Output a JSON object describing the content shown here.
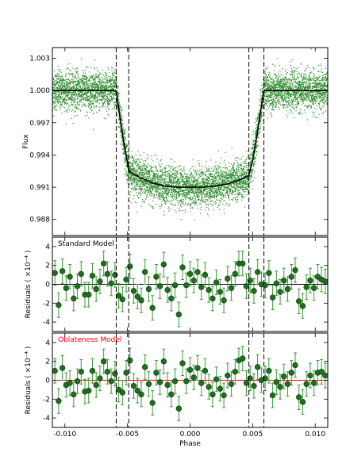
{
  "chart_data": [
    {
      "type": "scatter",
      "panel": "flux",
      "ylabel": "Flux",
      "xlim": [
        -0.011,
        0.011
      ],
      "ylim": [
        0.9865,
        1.004
      ],
      "yticks": [
        1.003,
        1.0,
        0.997,
        0.994,
        0.991,
        0.988
      ],
      "ytick_labels": [
        "1.003",
        "1.000",
        "0.997",
        "0.994",
        "0.991",
        "0.988"
      ],
      "colors": {
        "data": "#2e8b2e",
        "model": "#000000"
      },
      "transit_model": {
        "baseline": 1.0,
        "contacts": [
          -0.0059,
          -0.0049,
          0.0047,
          0.0059
        ],
        "min_flux": 0.991,
        "curve_x": [
          -0.011,
          -0.0059,
          -0.0056,
          -0.0053,
          -0.005,
          -0.0049,
          -0.004,
          -0.003,
          -0.002,
          -0.001,
          0.0,
          0.001,
          0.002,
          0.003,
          0.004,
          0.0047,
          0.005,
          0.0053,
          0.0056,
          0.0059,
          0.011
        ],
        "curve_y": [
          1.0,
          1.0,
          0.9975,
          0.9952,
          0.9933,
          0.9925,
          0.9919,
          0.9914,
          0.9911,
          0.991,
          0.991,
          0.991,
          0.9911,
          0.9913,
          0.9917,
          0.9921,
          0.9935,
          0.9955,
          0.9978,
          1.0,
          1.0
        ]
      },
      "noise_sigma": 0.0009,
      "dashed_lines_x": [
        -0.0059,
        -0.0049,
        0.0047,
        0.0059
      ]
    },
    {
      "type": "scatter",
      "panel": "standard_residuals",
      "annotation": "Standard Model",
      "annotation_color": "#000000",
      "ylabel": "Residuals ( ×10⁻⁴ )",
      "ylim": [
        -5,
        5
      ],
      "yticks": [
        4,
        2,
        0,
        -2,
        -4
      ],
      "ytick_labels": [
        "4",
        "2",
        "0",
        "-2",
        "-4"
      ],
      "zero_line_color": "#000000",
      "error_bar": 1.3,
      "x": [
        -0.0108,
        -0.0105,
        -0.0102,
        -0.0099,
        -0.0096,
        -0.0093,
        -0.009,
        -0.0087,
        -0.0084,
        -0.0081,
        -0.0078,
        -0.0075,
        -0.0072,
        -0.0069,
        -0.0066,
        -0.0063,
        -0.006,
        -0.0057,
        -0.0054,
        -0.0051,
        -0.0048,
        -0.0045,
        -0.0042,
        -0.0039,
        -0.0036,
        -0.0033,
        -0.003,
        -0.0027,
        -0.0024,
        -0.0021,
        -0.0018,
        -0.0015,
        -0.0012,
        -0.0009,
        -0.0006,
        -0.0003,
        0.0,
        0.0003,
        0.0006,
        0.0009,
        0.0012,
        0.0015,
        0.0018,
        0.0021,
        0.0024,
        0.0027,
        0.003,
        0.0033,
        0.0036,
        0.0039,
        0.0042,
        0.0045,
        0.0048,
        0.0051,
        0.0054,
        0.0057,
        0.006,
        0.0063,
        0.0066,
        0.0069,
        0.0072,
        0.0075,
        0.0078,
        0.0081,
        0.0084,
        0.0087,
        0.009,
        0.0093,
        0.0096,
        0.0099,
        0.0102,
        0.0105,
        0.0108
      ],
      "y": [
        1.2,
        -2.2,
        1.4,
        -0.4,
        0.8,
        -1.5,
        -0.2,
        1.1,
        -1.1,
        -1.1,
        0.9,
        -0.5,
        0.3,
        2.2,
        1.1,
        0.1,
        1.0,
        -1.2,
        -1.6,
        0.5,
        1.9,
        -0.7,
        -1.3,
        -1.7,
        1.3,
        -0.5,
        -2.5,
        0.8,
        -0.2,
        2.1,
        -0.6,
        -1.5,
        -0.1,
        -3.2,
        1.8,
        -0.1,
        1.1,
        0.4,
        1.3,
        -0.3,
        1.0,
        -0.6,
        -1.5,
        0.2,
        -0.8,
        -1.7,
        0.6,
        -0.4,
        1.1,
        2.2,
        2.2,
        -0.2,
        0.4,
        -0.7,
        1.3,
        0.0,
        -0.1,
        1.2,
        -1.4,
        0.1,
        -0.8,
        0.4,
        -0.5,
        0.8,
        1.5,
        -1.8,
        -2.3,
        -0.3,
        0.4,
        -0.4,
        0.8,
        0.5,
        0.3
      ]
    },
    {
      "type": "scatter",
      "panel": "oblateness_residuals",
      "annotation": "Oblateness Model",
      "annotation_color": "#ff0000",
      "ylabel": "Residuals ( ×10⁻⁴ )",
      "xlabel": "Phase",
      "ylim": [
        -5,
        5
      ],
      "yticks": [
        4,
        2,
        0,
        -2,
        -4
      ],
      "ytick_labels": [
        "4",
        "2",
        "0",
        "-2",
        "-4"
      ],
      "xticks": [
        -0.01,
        -0.005,
        0.0,
        0.005,
        0.01
      ],
      "xtick_labels": [
        "-0.010",
        "-0.005",
        "0.000",
        "0.005",
        "0.010"
      ],
      "zero_line_color": "#ff0000",
      "error_bar": 1.3,
      "x": [
        -0.0108,
        -0.0105,
        -0.0102,
        -0.0099,
        -0.0096,
        -0.0093,
        -0.009,
        -0.0087,
        -0.0084,
        -0.0081,
        -0.0078,
        -0.0075,
        -0.0072,
        -0.0069,
        -0.0066,
        -0.0063,
        -0.006,
        -0.0057,
        -0.0054,
        -0.0051,
        -0.0048,
        -0.0045,
        -0.0042,
        -0.0039,
        -0.0036,
        -0.0033,
        -0.003,
        -0.0027,
        -0.0024,
        -0.0021,
        -0.0018,
        -0.0015,
        -0.0012,
        -0.0009,
        -0.0006,
        -0.0003,
        0.0,
        0.0003,
        0.0006,
        0.0009,
        0.0012,
        0.0015,
        0.0018,
        0.0021,
        0.0024,
        0.0027,
        0.003,
        0.0033,
        0.0036,
        0.0039,
        0.0042,
        0.0045,
        0.0048,
        0.0051,
        0.0054,
        0.0057,
        0.006,
        0.0063,
        0.0066,
        0.0069,
        0.0072,
        0.0075,
        0.0078,
        0.0081,
        0.0084,
        0.0087,
        0.009,
        0.0093,
        0.0096,
        0.0099,
        0.0102,
        0.0105,
        0.0108
      ],
      "y": [
        1.0,
        -2.2,
        1.3,
        -0.5,
        -0.3,
        -1.5,
        -0.1,
        0.9,
        -1.2,
        -1.1,
        1.0,
        -0.5,
        0.2,
        2.0,
        0.9,
        -0.1,
        0.7,
        -1.0,
        -1.3,
        0.8,
        2.1,
        -0.6,
        -1.1,
        -1.5,
        1.4,
        -0.4,
        -2.4,
        0.8,
        -0.2,
        2.0,
        -0.5,
        -1.5,
        -0.1,
        -3.0,
        1.8,
        -0.1,
        1.1,
        0.3,
        1.3,
        -0.3,
        1.0,
        -0.7,
        -1.5,
        0.1,
        -0.9,
        -1.6,
        0.5,
        -0.4,
        0.9,
        2.1,
        2.3,
        -0.3,
        0.2,
        -0.6,
        1.4,
        0.0,
        0.2,
        1.0,
        -1.6,
        -0.2,
        -0.7,
        0.4,
        -0.4,
        0.8,
        1.6,
        -1.8,
        -2.3,
        -0.4,
        0.5,
        -0.3,
        0.8,
        0.9,
        0.5
      ]
    }
  ]
}
